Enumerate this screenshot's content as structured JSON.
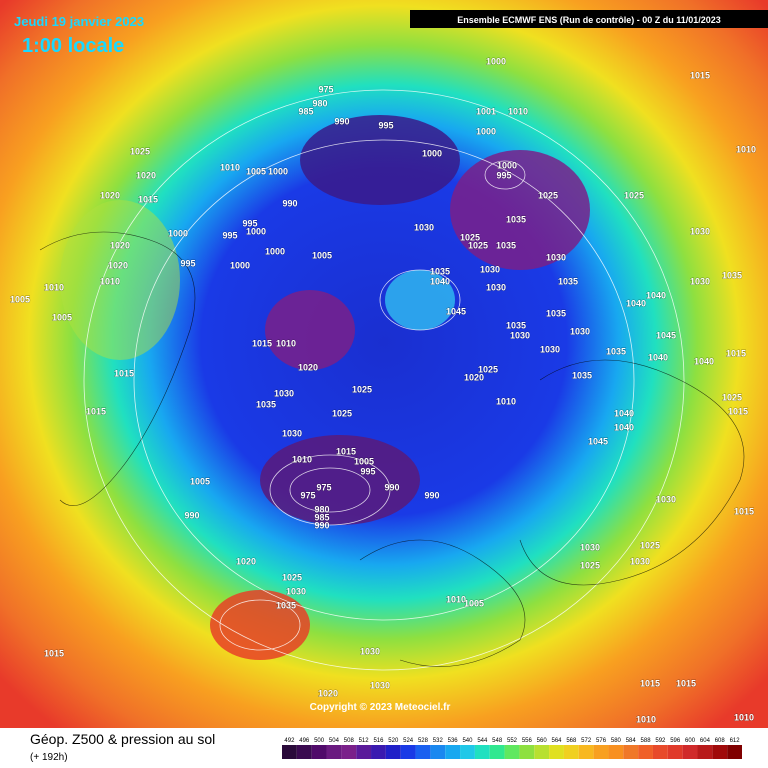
{
  "header": {
    "date": "Jeudi 19 janvier 2023",
    "time": "1:00 locale",
    "model": "Ensemble ECMWF ENS  (Run de contrôle)  -  00 Z du 11/01/2023"
  },
  "footer": {
    "title": "Géop. Z500 & pression au sol",
    "lead": "(+ 192h)",
    "copyright": "Copyright © 2023 Meteociel.fr"
  },
  "colorbar": {
    "ticks": [
      492,
      496,
      500,
      504,
      508,
      512,
      516,
      520,
      524,
      528,
      532,
      536,
      540,
      544,
      548,
      552,
      556,
      560,
      564,
      568,
      572,
      576,
      580,
      584,
      588,
      592,
      596,
      600,
      604,
      608,
      612
    ]
  },
  "isobar_labels": [
    "975",
    "980",
    "985",
    "990",
    "995",
    "1000",
    "1015",
    "1001",
    "1010",
    "1000",
    "1000",
    "1025",
    "1020",
    "1015",
    "1010",
    "1005",
    "1000",
    "990",
    "1020",
    "1000",
    "995",
    "995",
    "1000",
    "1000",
    "1005",
    "1000",
    "995",
    "1020",
    "1020",
    "1010",
    "1010",
    "1005",
    "1005",
    "1000",
    "995",
    "1035",
    "1025",
    "1030",
    "1025",
    "1025",
    "1035",
    "1035",
    "1040",
    "1030",
    "1030",
    "1030",
    "1035",
    "1025",
    "1030",
    "1030",
    "1035",
    "1040",
    "1040",
    "1045",
    "1035",
    "1030",
    "1035",
    "1030",
    "1030",
    "1015",
    "1010",
    "1020",
    "1025",
    "1035",
    "1030",
    "1025",
    "1025",
    "1020",
    "1010",
    "1035",
    "1015",
    "1015",
    "1030",
    "1010",
    "1015",
    "1005",
    "995",
    "990",
    "990",
    "975",
    "975",
    "980",
    "985",
    "990",
    "1005",
    "990",
    "1020",
    "1025",
    "1030",
    "1035",
    "1010",
    "1005",
    "1030",
    "1030",
    "1020",
    "1015",
    "1025",
    "1030",
    "1015",
    "1015",
    "1015",
    "1010",
    "1010",
    "1010",
    "1015",
    "1040",
    "1025",
    "1015",
    "1030",
    "1025",
    "1030",
    "1045",
    "1040",
    "1040",
    "1045",
    "1040",
    "1035"
  ]
}
